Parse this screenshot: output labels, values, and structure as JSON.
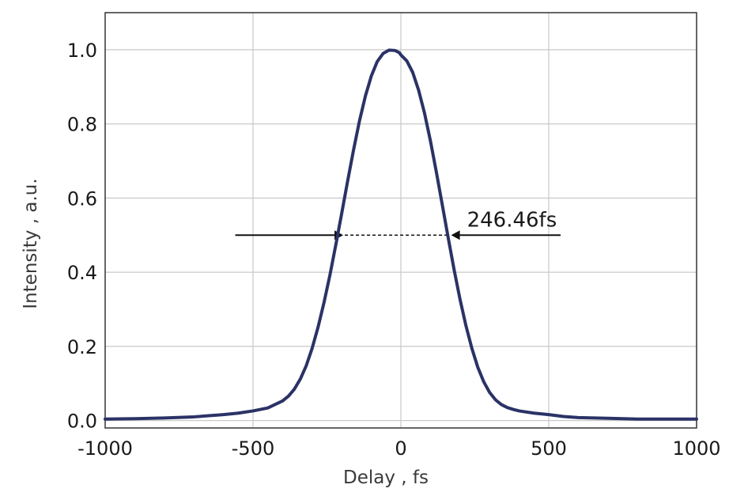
{
  "chart_data": {
    "type": "line",
    "title": "",
    "xlabel": "Delay , fs",
    "ylabel": "Intensity , a.u.",
    "xlim": [
      -1000,
      1000
    ],
    "ylim": [
      -0.02,
      1.1
    ],
    "xticks": [
      -1000,
      -500,
      0,
      500,
      1000
    ],
    "xtick_labels": [
      "-1000",
      "-500",
      "0",
      "500",
      "1000"
    ],
    "yticks": [
      0.0,
      0.2,
      0.4,
      0.6,
      0.8,
      1.0
    ],
    "ytick_labels": [
      "0.0",
      "0.2",
      "0.4",
      "0.6",
      "0.8",
      "1.0"
    ],
    "grid": true,
    "series": [
      {
        "color": "#2b3266",
        "x": [
          -1000,
          -900,
          -800,
          -700,
          -600,
          -550,
          -500,
          -450,
          -400,
          -380,
          -360,
          -340,
          -320,
          -300,
          -280,
          -260,
          -240,
          -220,
          -200,
          -180,
          -160,
          -140,
          -120,
          -100,
          -80,
          -60,
          -40,
          -20,
          -5,
          0,
          20,
          40,
          60,
          80,
          100,
          120,
          140,
          160,
          180,
          200,
          220,
          240,
          260,
          280,
          300,
          320,
          340,
          360,
          380,
          400,
          450,
          500,
          550,
          600,
          700,
          800,
          900,
          1000
        ],
        "y": [
          0.004,
          0.005,
          0.007,
          0.01,
          0.016,
          0.02,
          0.026,
          0.034,
          0.053,
          0.066,
          0.085,
          0.112,
          0.148,
          0.195,
          0.252,
          0.318,
          0.392,
          0.474,
          0.559,
          0.646,
          0.73,
          0.808,
          0.875,
          0.929,
          0.968,
          0.99,
          0.999,
          0.998,
          0.992,
          0.986,
          0.97,
          0.939,
          0.891,
          0.829,
          0.754,
          0.67,
          0.582,
          0.493,
          0.407,
          0.327,
          0.256,
          0.195,
          0.144,
          0.105,
          0.076,
          0.056,
          0.043,
          0.035,
          0.03,
          0.026,
          0.02,
          0.016,
          0.011,
          0.008,
          0.006,
          0.004,
          0.004,
          0.004
        ]
      }
    ],
    "annotations": [
      {
        "text": "246.46fs",
        "y": 0.5,
        "x_left_edge": -195,
        "x_right_edge": 170,
        "left_arrow_tail_x": -560,
        "right_arrow_tail_x": 540
      }
    ]
  }
}
